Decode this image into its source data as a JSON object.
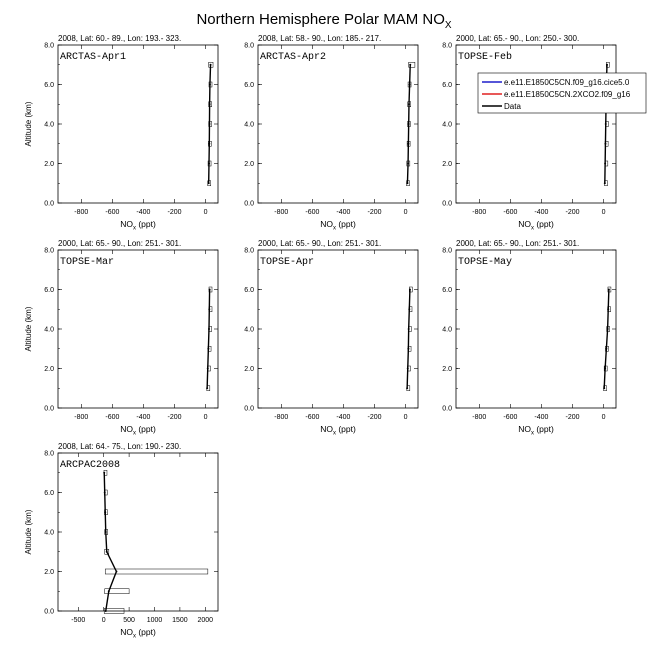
{
  "figure": {
    "title": "Northern Hemisphere Polar MAM NO",
    "title_sub": "X"
  },
  "chart_data": [
    {
      "type": "line",
      "header": "2008, Lat:  60.- 89., Lon: 193.- 323.",
      "label": "ARCTAS-Apr1",
      "xlabel": "NO",
      "xlabel_sub": "x",
      "xlabel_unit": " (ppt)",
      "ylabel": "Altitude (km)",
      "xlim": [
        -950,
        80
      ],
      "xticks": [
        -800,
        -600,
        -400,
        -200,
        0
      ],
      "xtick_labels": [
        "-800",
        "-600",
        "-400",
        "-200",
        "0"
      ],
      "ylim": [
        0,
        8
      ],
      "yticks": [
        0,
        2,
        4,
        6,
        8
      ],
      "ytick_labels": [
        "0.0",
        "2.0",
        "4.0",
        "6.0",
        "8.0"
      ],
      "series": [
        {
          "color": "#000000",
          "y": [
            1,
            2,
            3,
            4,
            5,
            6,
            7
          ],
          "x": [
            20,
            22,
            24,
            25,
            26,
            28,
            32
          ],
          "boxes": [
            [
              14,
              28
            ],
            [
              16,
              30
            ],
            [
              18,
              30
            ],
            [
              20,
              30
            ],
            [
              20,
              32
            ],
            [
              22,
              34
            ],
            [
              20,
              48
            ]
          ]
        }
      ]
    },
    {
      "type": "line",
      "header": "2008, Lat:  58.- 90., Lon: 185.- 217.",
      "label": "ARCTAS-Apr2",
      "xlabel": "NO",
      "xlabel_sub": "x",
      "xlabel_unit": " (ppt)",
      "ylabel": "",
      "xlim": [
        -950,
        80
      ],
      "xticks": [
        -800,
        -600,
        -400,
        -200,
        0
      ],
      "xtick_labels": [
        "-800",
        "-600",
        "-400",
        "-200",
        "0"
      ],
      "ylim": [
        0,
        8
      ],
      "yticks": [
        0,
        2,
        4,
        6,
        8
      ],
      "ytick_labels": [
        "0.0",
        "2.0",
        "4.0",
        "6.0",
        "8.0"
      ],
      "series": [
        {
          "color": "#000000",
          "y": [
            1,
            2,
            3,
            4,
            5,
            6,
            7
          ],
          "x": [
            12,
            16,
            18,
            20,
            22,
            26,
            30
          ],
          "boxes": [
            [
              6,
              18
            ],
            [
              8,
              24
            ],
            [
              10,
              26
            ],
            [
              12,
              28
            ],
            [
              14,
              30
            ],
            [
              16,
              34
            ],
            [
              20,
              60
            ]
          ]
        }
      ]
    },
    {
      "type": "line",
      "header": "2000, Lat: 65.- 90., Lon: 250.- 300.",
      "label": "TOPSE-Feb",
      "xlabel": "NO",
      "xlabel_sub": "x",
      "xlabel_unit": " (ppt)",
      "ylabel": "",
      "xlim": [
        -950,
        80
      ],
      "xticks": [
        -800,
        -600,
        -400,
        -200,
        0
      ],
      "xtick_labels": [
        "-800",
        "-600",
        "-400",
        "-200",
        "0"
      ],
      "ylim": [
        0,
        8
      ],
      "yticks": [
        0,
        2,
        4,
        6,
        8
      ],
      "ytick_labels": [
        "0.0",
        "2.0",
        "4.0",
        "6.0",
        "8.0"
      ],
      "legend": {
        "placement": "top-right",
        "entries": [
          {
            "label": "e.e11.E1850C5CN.f09_g16.cice5.0",
            "color": "#1f1fcc"
          },
          {
            "label": "e.e11.E1850C5CN.2XCO2.f09_g16",
            "color": "#e02020"
          },
          {
            "label": "Data",
            "color": "#000000"
          }
        ]
      },
      "series": [
        {
          "color": "#000000",
          "y": [
            1,
            2,
            3,
            4,
            5,
            6,
            7
          ],
          "x": [
            8,
            10,
            12,
            14,
            16,
            18,
            22
          ],
          "boxes": [
            [
              6,
              10
            ],
            [
              8,
              12
            ],
            [
              10,
              14
            ],
            [
              12,
              16
            ],
            [
              14,
              18
            ],
            [
              16,
              20
            ],
            [
              18,
              26
            ]
          ]
        }
      ]
    },
    {
      "type": "line",
      "header": "2000, Lat: 65.- 90., Lon: 251.- 301.",
      "label": "TOPSE-Mar",
      "xlabel": "NO",
      "xlabel_sub": "x",
      "xlabel_unit": " (ppt)",
      "ylabel": "Altitude (km)",
      "xlim": [
        -950,
        80
      ],
      "xticks": [
        -800,
        -600,
        -400,
        -200,
        0
      ],
      "xtick_labels": [
        "-800",
        "-600",
        "-400",
        "-200",
        "0"
      ],
      "ylim": [
        0,
        8
      ],
      "yticks": [
        0,
        2,
        4,
        6,
        8
      ],
      "ytick_labels": [
        "0.0",
        "2.0",
        "4.0",
        "6.0",
        "8.0"
      ],
      "series": [
        {
          "color": "#000000",
          "y": [
            1,
            2,
            3,
            4,
            5,
            6
          ],
          "x": [
            10,
            14,
            18,
            22,
            24,
            26
          ],
          "boxes": [
            [
              8,
              12
            ],
            [
              12,
              16
            ],
            [
              16,
              20
            ],
            [
              20,
              24
            ],
            [
              22,
              26
            ],
            [
              22,
              34
            ]
          ]
        }
      ]
    },
    {
      "type": "line",
      "header": "2000, Lat: 65.- 90., Lon: 251.- 301.",
      "label": "TOPSE-Apr",
      "xlabel": "NO",
      "xlabel_sub": "x",
      "xlabel_unit": " (ppt)",
      "ylabel": "",
      "xlim": [
        -950,
        80
      ],
      "xticks": [
        -800,
        -600,
        -400,
        -200,
        0
      ],
      "xtick_labels": [
        "-800",
        "-600",
        "-400",
        "-200",
        "0"
      ],
      "ylim": [
        0,
        8
      ],
      "yticks": [
        0,
        2,
        4,
        6,
        8
      ],
      "ytick_labels": [
        "0.0",
        "2.0",
        "4.0",
        "6.0",
        "8.0"
      ],
      "series": [
        {
          "color": "#000000",
          "y": [
            1,
            2,
            3,
            4,
            5,
            6
          ],
          "x": [
            10,
            14,
            18,
            20,
            24,
            28
          ],
          "boxes": [
            [
              8,
              12
            ],
            [
              12,
              16
            ],
            [
              16,
              20
            ],
            [
              18,
              22
            ],
            [
              22,
              26
            ],
            [
              24,
              32
            ]
          ]
        }
      ]
    },
    {
      "type": "line",
      "header": "2000, Lat: 65.- 90., Lon: 251.- 301.",
      "label": "TOPSE-May",
      "xlabel": "NO",
      "xlabel_sub": "x",
      "xlabel_unit": " (ppt)",
      "ylabel": "",
      "xlim": [
        -950,
        80
      ],
      "xticks": [
        -800,
        -600,
        -400,
        -200,
        0
      ],
      "xtick_labels": [
        "-800",
        "-600",
        "-400",
        "-200",
        "0"
      ],
      "ylim": [
        0,
        8
      ],
      "yticks": [
        0,
        2,
        4,
        6,
        8
      ],
      "ytick_labels": [
        "0.0",
        "2.0",
        "4.0",
        "6.0",
        "8.0"
      ],
      "series": [
        {
          "color": "#000000",
          "y": [
            1,
            2,
            3,
            4,
            5,
            6
          ],
          "x": [
            4,
            10,
            18,
            26,
            30,
            34
          ],
          "boxes": [
            [
              0,
              10
            ],
            [
              4,
              16
            ],
            [
              12,
              24
            ],
            [
              20,
              32
            ],
            [
              26,
              36
            ],
            [
              28,
              40
            ]
          ]
        }
      ]
    },
    {
      "type": "line",
      "header": "2008, Lat: 64.- 75., Lon: 190.- 230.",
      "label": "ARCPAC2008",
      "xlabel": "NO",
      "xlabel_sub": "x",
      "xlabel_unit": " (ppt)",
      "ylabel": "Altitude (km)",
      "xlim": [
        -900,
        2250
      ],
      "xticks": [
        -500,
        0,
        500,
        1000,
        1500,
        2000
      ],
      "xtick_labels": [
        "-500",
        "0",
        "500",
        "1000",
        "1500",
        "2000"
      ],
      "ylim": [
        0,
        8
      ],
      "yticks": [
        0,
        2,
        4,
        6,
        8
      ],
      "ytick_labels": [
        "0.0",
        "2.0",
        "4.0",
        "6.0",
        "8.0"
      ],
      "series": [
        {
          "color": "#000000",
          "y": [
            0,
            1,
            2,
            3,
            4,
            5,
            6,
            7
          ],
          "x": [
            40,
            100,
            250,
            60,
            40,
            30,
            20,
            10
          ],
          "boxes": [
            [
              10,
              400
            ],
            [
              20,
              500
            ],
            [
              30,
              2050
            ],
            [
              20,
              100
            ],
            [
              20,
              60
            ],
            [
              15,
              50
            ],
            [
              10,
              40
            ],
            [
              5,
              20
            ]
          ]
        }
      ]
    }
  ]
}
